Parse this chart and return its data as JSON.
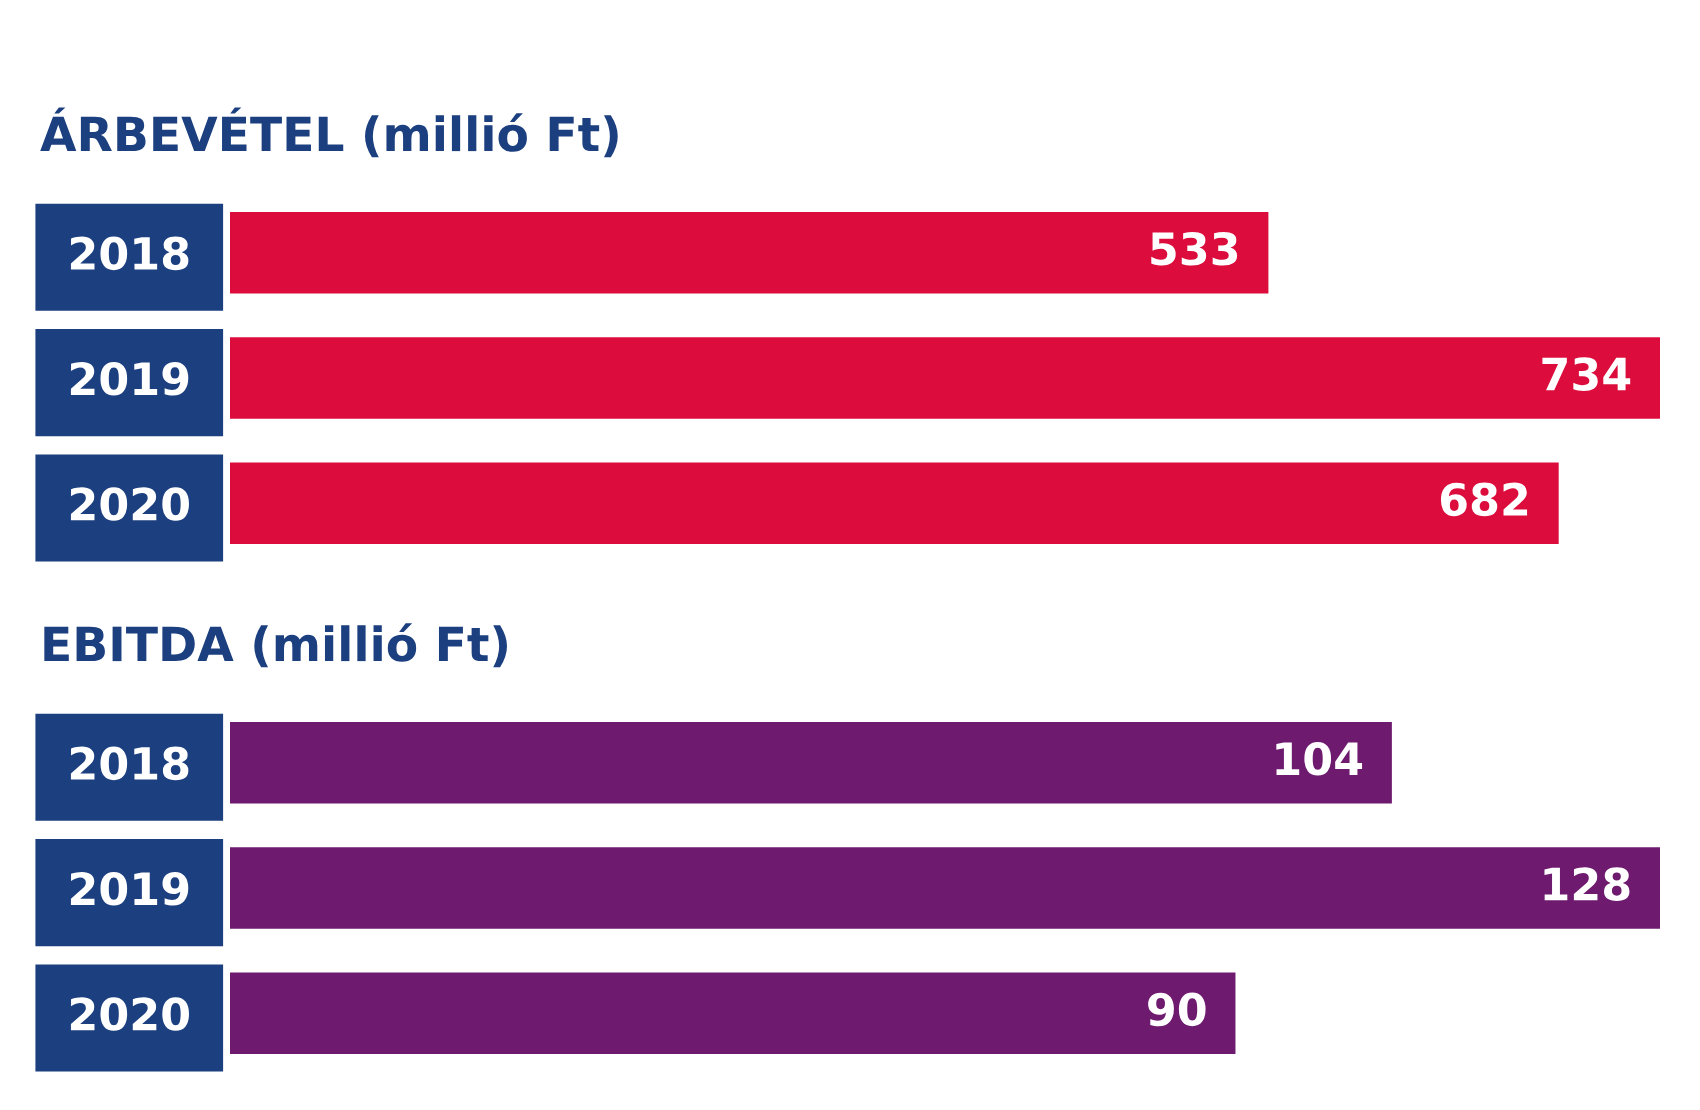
{
  "chart_data": [
    {
      "type": "bar",
      "orientation": "horizontal",
      "title": "ÁRBEVÉTEL (millió Ft)",
      "categories": [
        "2018",
        "2019",
        "2020"
      ],
      "values": [
        533,
        734,
        682
      ],
      "color": "#dc0d3c",
      "data_labels": true
    },
    {
      "type": "bar",
      "orientation": "horizontal",
      "title": "EBITDA (millió Ft)",
      "categories": [
        "2018",
        "2019",
        "2020"
      ],
      "values": [
        104,
        128,
        90
      ],
      "color": "#6e1a6e",
      "data_labels": true
    }
  ]
}
